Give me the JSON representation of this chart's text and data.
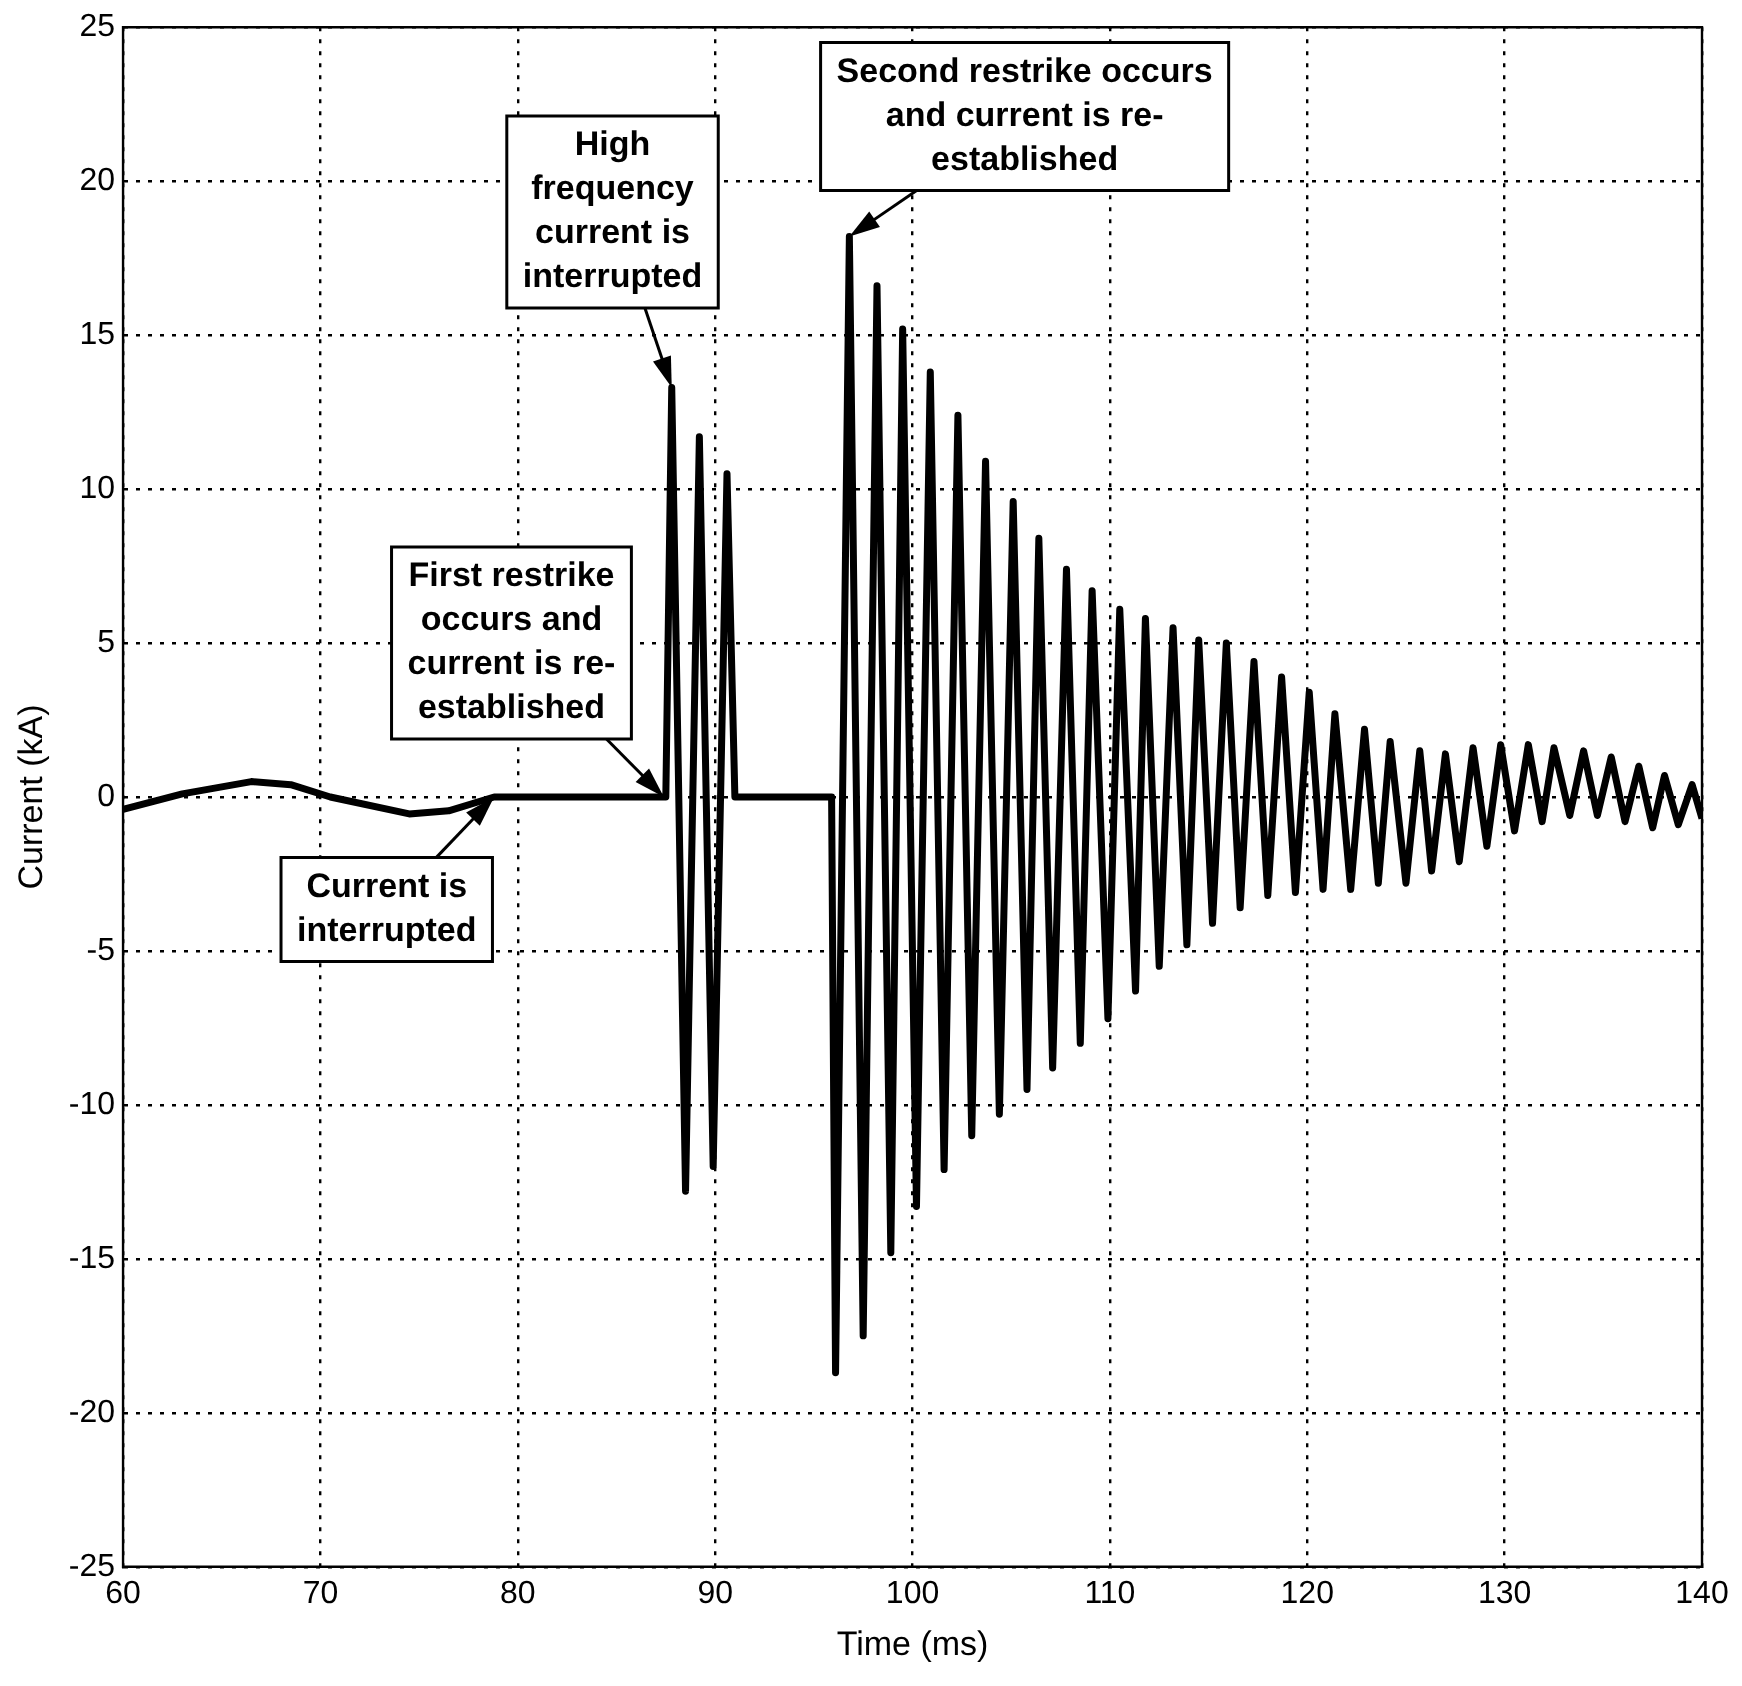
{
  "chart_data": {
    "type": "line",
    "xlabel": "Time (ms)",
    "ylabel": "Current (kA)",
    "xlim": [
      60,
      140
    ],
    "xticks": [
      60,
      70,
      80,
      90,
      100,
      110,
      120,
      130,
      140
    ],
    "ylim": [
      -25,
      25
    ],
    "yticks": [
      -25,
      -20,
      -15,
      -10,
      -5,
      0,
      5,
      10,
      15,
      20,
      25
    ],
    "grid": true,
    "legend": false,
    "marker": "none",
    "line_style": "solid",
    "series": [
      {
        "color": "#000000",
        "x": [
          60,
          63,
          66.5,
          68.5,
          70.5,
          74.5,
          76.5,
          78.8,
          87.5,
          87.8,
          88.5,
          89.2,
          89.9,
          90.6,
          91.0,
          95.9,
          96.1,
          96.8,
          97.5,
          98.2,
          98.9,
          99.5,
          100.2,
          100.9,
          101.6,
          102.3,
          103.0,
          103.7,
          104.4,
          105.1,
          105.8,
          106.4,
          107.1,
          107.8,
          108.5,
          109.1,
          109.9,
          110.5,
          111.3,
          111.8,
          112.5,
          113.2,
          113.9,
          114.5,
          115.2,
          115.9,
          116.6,
          117.3,
          118.0,
          118.7,
          119.4,
          120.1,
          120.8,
          121.4,
          122.2,
          122.9,
          123.6,
          124.2,
          125.0,
          125.7,
          126.3,
          127.0,
          127.7,
          128.4,
          129.1,
          129.8,
          130.5,
          131.2,
          131.9,
          132.5,
          133.3,
          134.0,
          134.7,
          135.4,
          136.1,
          136.8,
          137.5,
          138.1,
          138.8,
          139.5,
          140
        ],
        "values": [
          -0.4,
          0.1,
          0.5,
          0.4,
          0,
          -0.55,
          -0.45,
          0,
          0,
          13.3,
          -12.8,
          11.7,
          -12.0,
          10.5,
          0,
          0,
          -18.7,
          18.2,
          -17.5,
          16.6,
          -14.8,
          15.2,
          -13.3,
          13.8,
          -12.1,
          12.4,
          -11.0,
          10.9,
          -10.3,
          9.6,
          -9.5,
          8.4,
          -8.8,
          7.4,
          -8.0,
          6.7,
          -7.2,
          6.1,
          -6.3,
          5.8,
          -5.5,
          5.5,
          -4.8,
          5.1,
          -4.1,
          5.0,
          -3.6,
          4.4,
          -3.2,
          3.9,
          -3.1,
          3.4,
          -3.0,
          2.7,
          -3.0,
          2.2,
          -2.8,
          1.8,
          -2.8,
          1.5,
          -2.4,
          1.4,
          -2.1,
          1.6,
          -1.6,
          1.7,
          -1.1,
          1.7,
          -0.8,
          1.6,
          -0.6,
          1.5,
          -0.6,
          1.3,
          -0.8,
          1.0,
          -1.0,
          0.7,
          -0.9,
          0.4,
          -0.7
        ]
      }
    ],
    "annotations": [
      {
        "text": "Current is interrupted",
        "x": 78.8,
        "y": 0
      },
      {
        "text": "First restrike occurs and current is re-established",
        "x": 87.4,
        "y": 0
      },
      {
        "text": "High frequency current is interrupted",
        "x": 87.8,
        "y": 13.3
      },
      {
        "text": "Second restrike occurs and current is re-established",
        "x": 96.8,
        "y": 18.2
      }
    ]
  }
}
